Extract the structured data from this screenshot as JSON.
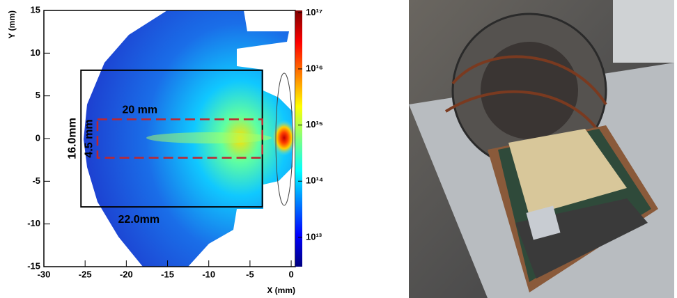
{
  "chart_data": {
    "type": "heatmap",
    "xlabel": "X (mm)",
    "ylabel": "Y (mm)",
    "xlim": [
      -30,
      0.5
    ],
    "ylim": [
      -15,
      15
    ],
    "xticks": [
      -30,
      -25,
      -20,
      -15,
      -10,
      -5,
      0
    ],
    "yticks": [
      -15,
      -10,
      -5,
      0,
      5,
      10,
      15
    ],
    "colormap": "jet",
    "zscale": "log",
    "zlim": [
      3000000000000.0,
      1.1e+17
    ],
    "zticks": [
      {
        "value": 10000000000000.0,
        "label": "10¹³"
      },
      {
        "value": 100000000000000.0,
        "label": "10¹⁴"
      },
      {
        "value": 1000000000000000.0,
        "label": "10¹⁵"
      },
      {
        "value": 1e+16,
        "label": "10¹⁶"
      },
      {
        "value": 1e+17,
        "label": "10¹⁷"
      }
    ],
    "boxes": [
      {
        "x": [
          -25.5,
          -3.5
        ],
        "y": [
          -8,
          8
        ],
        "color": "#000000",
        "dashed": false,
        "width_label": "22.0mm",
        "height_label": "16.0mm"
      },
      {
        "x": [
          -23.5,
          -3.5
        ],
        "y": [
          -2.25,
          2.25
        ],
        "color": "#c0262d",
        "dashed": true,
        "width_label": "20 mm",
        "height_label": "4.5 mm"
      }
    ]
  }
}
